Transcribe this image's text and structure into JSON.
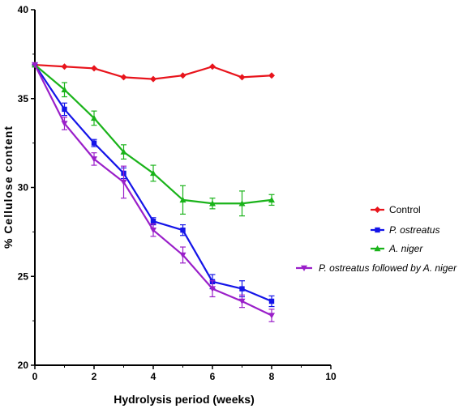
{
  "chart_data": {
    "type": "line",
    "title": "",
    "xlabel": "Hydrolysis period (weeks)",
    "ylabel": "% Cellulose content",
    "xlim": [
      0,
      10
    ],
    "ylim": [
      20,
      40
    ],
    "x_ticks": [
      0,
      2,
      4,
      6,
      8,
      10
    ],
    "y_ticks": [
      20,
      25,
      30,
      35,
      40
    ],
    "grid": false,
    "legend_position": "right",
    "x": [
      0,
      1,
      2,
      3,
      4,
      5,
      6,
      7,
      8
    ],
    "series": [
      {
        "name": "Control",
        "italic": false,
        "color": "#e8141c",
        "marker": "diamond",
        "values": [
          36.9,
          36.8,
          36.7,
          36.2,
          36.1,
          36.3,
          36.8,
          36.2,
          36.3
        ],
        "errors": [
          0,
          0,
          0,
          0,
          0,
          0,
          0,
          0,
          0
        ]
      },
      {
        "name": "P. ostreatus",
        "italic": true,
        "color": "#1414e8",
        "marker": "square",
        "values": [
          36.9,
          34.4,
          32.5,
          30.8,
          28.1,
          27.6,
          24.7,
          24.3,
          23.6
        ],
        "errors": [
          0,
          0.35,
          0.2,
          0.3,
          0.2,
          0.3,
          0.4,
          0.45,
          0.3
        ]
      },
      {
        "name": "A. niger",
        "italic": true,
        "color": "#1ab31a",
        "marker": "triangle-up",
        "values": [
          36.9,
          35.5,
          33.9,
          32.0,
          30.8,
          29.3,
          29.1,
          29.1,
          29.3
        ],
        "errors": [
          0,
          0.4,
          0.4,
          0.4,
          0.45,
          0.8,
          0.3,
          0.7,
          0.3
        ]
      },
      {
        "name": "P. ostreatus followed by A. niger",
        "italic": true,
        "color": "#9a1fc9",
        "marker": "triangle-down",
        "values": [
          36.9,
          33.6,
          31.6,
          30.3,
          27.6,
          26.2,
          24.3,
          23.6,
          22.8
        ],
        "errors": [
          0,
          0.35,
          0.35,
          0.9,
          0.35,
          0.45,
          0.45,
          0.35,
          0.35
        ]
      }
    ]
  }
}
